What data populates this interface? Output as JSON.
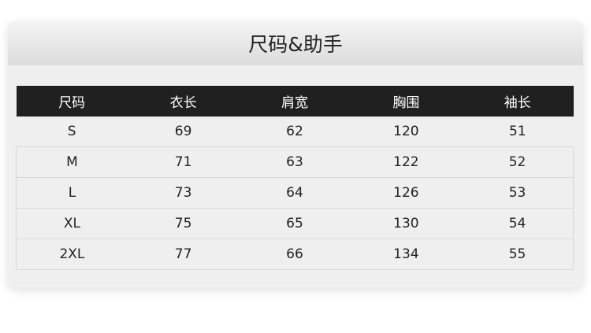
{
  "title": "尺码&助手",
  "headers": [
    "尺码",
    "衣长",
    "肩宽",
    "胸围",
    "袖长"
  ],
  "rows": [
    [
      "S",
      "69",
      "62",
      "120",
      "51"
    ],
    [
      "M",
      "71",
      "63",
      "122",
      "52"
    ],
    [
      "L",
      "73",
      "64",
      "126",
      "53"
    ],
    [
      "XL",
      "75",
      "65",
      "130",
      "54"
    ],
    [
      "2XL",
      "77",
      "66",
      "134",
      "55"
    ]
  ]
}
